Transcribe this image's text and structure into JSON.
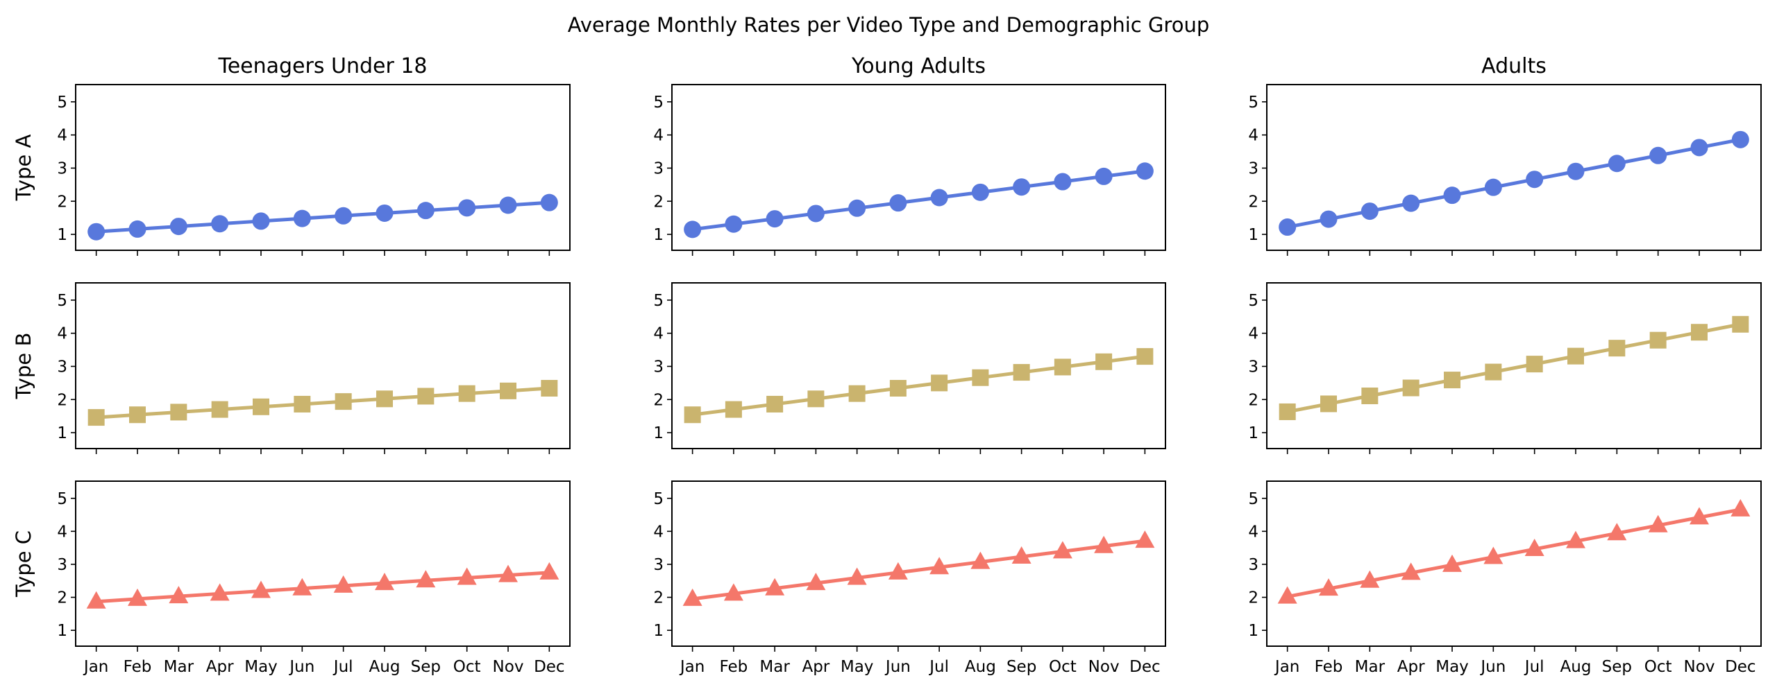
{
  "chart_data": {
    "type": "line",
    "title": "Average Monthly Rates per Video Type and Demographic Group",
    "columns": [
      "Teenagers Under 18",
      "Young Adults",
      "Adults"
    ],
    "rows": [
      "Type A",
      "Type B",
      "Type C"
    ],
    "categories": [
      "Jan",
      "Feb",
      "Mar",
      "Apr",
      "May",
      "Jun",
      "Jul",
      "Aug",
      "Sep",
      "Oct",
      "Nov",
      "Dec"
    ],
    "yticks": [
      1,
      2,
      3,
      4,
      5
    ],
    "ylim": [
      0.52,
      5.52
    ],
    "grid": false,
    "row_styles": [
      {
        "color": "#5878dc",
        "marker": "circle"
      },
      {
        "color": "#cab46e",
        "marker": "square"
      },
      {
        "color": "#f4776a",
        "marker": "triangle"
      }
    ],
    "series": [
      [
        {
          "row": "Type A",
          "column": "Teenagers Under 18",
          "values": [
            1.08,
            1.16,
            1.24,
            1.32,
            1.4,
            1.48,
            1.56,
            1.64,
            1.72,
            1.8,
            1.88,
            1.96
          ]
        },
        {
          "row": "Type A",
          "column": "Young Adults",
          "values": [
            1.15,
            1.31,
            1.47,
            1.63,
            1.79,
            1.95,
            2.11,
            2.27,
            2.43,
            2.59,
            2.75,
            2.91
          ]
        },
        {
          "row": "Type A",
          "column": "Adults",
          "values": [
            1.22,
            1.46,
            1.7,
            1.94,
            2.18,
            2.42,
            2.66,
            2.9,
            3.14,
            3.38,
            3.62,
            3.86
          ]
        }
      ],
      [
        {
          "row": "Type B",
          "column": "Teenagers Under 18",
          "values": [
            1.46,
            1.54,
            1.62,
            1.7,
            1.78,
            1.86,
            1.94,
            2.02,
            2.1,
            2.18,
            2.26,
            2.34
          ]
        },
        {
          "row": "Type B",
          "column": "Young Adults",
          "values": [
            1.54,
            1.7,
            1.86,
            2.02,
            2.18,
            2.34,
            2.5,
            2.66,
            2.82,
            2.98,
            3.14,
            3.3
          ]
        },
        {
          "row": "Type B",
          "column": "Adults",
          "values": [
            1.63,
            1.87,
            2.11,
            2.35,
            2.59,
            2.83,
            3.07,
            3.31,
            3.55,
            3.79,
            4.03,
            4.27
          ]
        }
      ],
      [
        {
          "row": "Type C",
          "column": "Teenagers Under 18",
          "values": [
            1.87,
            1.95,
            2.03,
            2.11,
            2.19,
            2.27,
            2.35,
            2.43,
            2.51,
            2.59,
            2.67,
            2.75
          ]
        },
        {
          "row": "Type C",
          "column": "Young Adults",
          "values": [
            1.95,
            2.11,
            2.27,
            2.43,
            2.59,
            2.75,
            2.91,
            3.07,
            3.23,
            3.39,
            3.55,
            3.71
          ]
        },
        {
          "row": "Type C",
          "column": "Adults",
          "values": [
            2.02,
            2.26,
            2.5,
            2.74,
            2.98,
            3.22,
            3.46,
            3.7,
            3.94,
            4.18,
            4.42,
            4.66
          ]
        }
      ]
    ]
  }
}
